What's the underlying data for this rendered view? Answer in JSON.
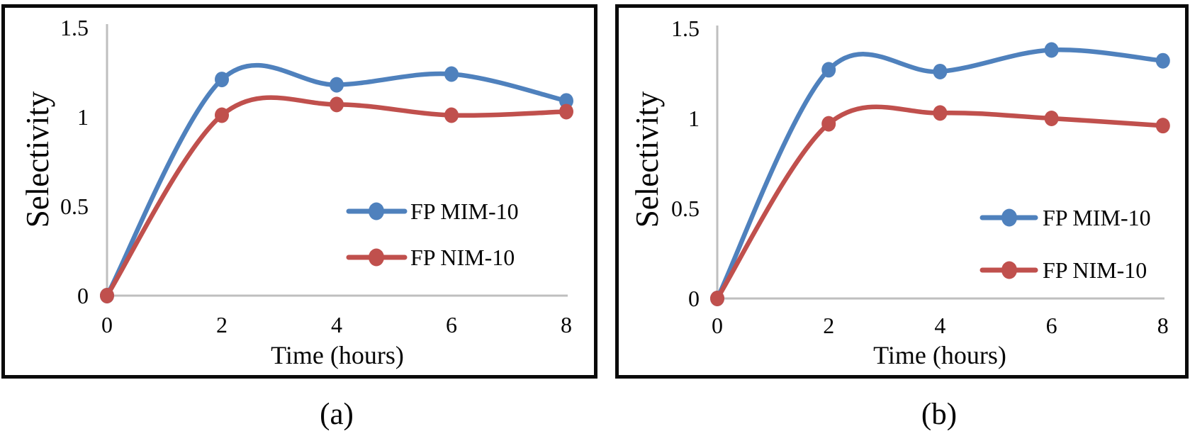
{
  "figure": {
    "background": "#ffffff",
    "border_color": "#0a0a0a",
    "axis_line_color": "#BFBFBF",
    "text_color": "#060606"
  },
  "captions": {
    "a": "(a)",
    "b": "(b)"
  },
  "chart_data": [
    {
      "id": "a",
      "type": "line",
      "caption": "(a)",
      "xlabel": "Time (hours)",
      "ylabel": "Selectivity",
      "x": [
        0,
        2,
        4,
        6,
        8
      ],
      "xtick_labels": [
        "0",
        "2",
        "4",
        "6",
        "8"
      ],
      "yticks": [
        0,
        0.5,
        1,
        1.5
      ],
      "ytick_labels": [
        "0",
        "0.5",
        "1",
        "1.5"
      ],
      "ylim": [
        0,
        1.5
      ],
      "xlim": [
        0,
        8
      ],
      "grid": false,
      "smooth": true,
      "legend_position": "lower-right-inside",
      "series": [
        {
          "name": "FP MIM-10",
          "color": "#4F81BD",
          "values": [
            0,
            1.21,
            1.18,
            1.24,
            1.09
          ]
        },
        {
          "name": "FP NIM-10",
          "color": "#C0504D",
          "values": [
            0,
            1.01,
            1.07,
            1.01,
            1.03
          ]
        }
      ]
    },
    {
      "id": "b",
      "type": "line",
      "caption": "(b)",
      "xlabel": "Time (hours)",
      "ylabel": "Selectivity",
      "x": [
        0,
        2,
        4,
        6,
        8
      ],
      "xtick_labels": [
        "0",
        "2",
        "4",
        "6",
        "8"
      ],
      "yticks": [
        0,
        0.5,
        1,
        1.5
      ],
      "ytick_labels": [
        "0",
        "0.5",
        "1",
        "1.5"
      ],
      "ylim": [
        0,
        1.5
      ],
      "xlim": [
        0,
        8
      ],
      "grid": false,
      "smooth": true,
      "legend_position": "lower-right-inside",
      "series": [
        {
          "name": "FP MIM-10",
          "color": "#4F81BD",
          "values": [
            0,
            1.27,
            1.26,
            1.38,
            1.32
          ]
        },
        {
          "name": "FP NIM-10",
          "color": "#C0504D",
          "values": [
            0,
            0.97,
            1.03,
            1.0,
            0.96
          ]
        }
      ]
    }
  ]
}
